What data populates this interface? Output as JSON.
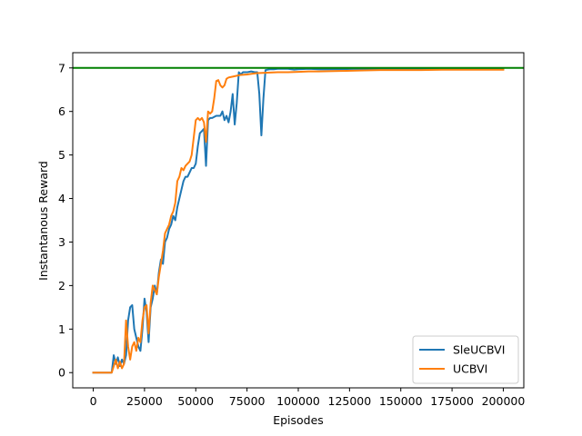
{
  "chart_data": {
    "type": "line",
    "title": "",
    "xlabel": "Episodes",
    "ylabel": "Instantanous Reward",
    "xlim": [
      -10000,
      210000
    ],
    "ylim": [
      -0.35,
      7.35
    ],
    "xticks": [
      0,
      25000,
      50000,
      75000,
      100000,
      125000,
      150000,
      175000,
      200000
    ],
    "yticks": [
      0,
      1,
      2,
      3,
      4,
      5,
      6,
      7
    ],
    "grid": false,
    "legend_placement": "lower-right",
    "reference_line": {
      "y": 7,
      "color": "#008000"
    },
    "series": [
      {
        "name": "SleUCBVI",
        "color": "#1f77b4",
        "points": [
          [
            0,
            0
          ],
          [
            5000,
            0
          ],
          [
            9000,
            0
          ],
          [
            10000,
            0.4
          ],
          [
            11000,
            0.2
          ],
          [
            12000,
            0.35
          ],
          [
            13000,
            0.15
          ],
          [
            14000,
            0.3
          ],
          [
            15000,
            0.2
          ],
          [
            16000,
            0.4
          ],
          [
            17000,
            1.2
          ],
          [
            18000,
            1.5
          ],
          [
            19000,
            1.55
          ],
          [
            20000,
            1.0
          ],
          [
            21000,
            0.8
          ],
          [
            22000,
            0.6
          ],
          [
            23000,
            0.5
          ],
          [
            24000,
            1.0
          ],
          [
            25000,
            1.7
          ],
          [
            26000,
            1.4
          ],
          [
            27000,
            0.7
          ],
          [
            28000,
            1.5
          ],
          [
            29000,
            1.7
          ],
          [
            30000,
            2.0
          ],
          [
            31000,
            1.8
          ],
          [
            32000,
            2.3
          ],
          [
            33000,
            2.6
          ],
          [
            34000,
            2.5
          ],
          [
            35000,
            3.0
          ],
          [
            36000,
            3.1
          ],
          [
            37000,
            3.3
          ],
          [
            38000,
            3.4
          ],
          [
            39000,
            3.6
          ],
          [
            40000,
            3.5
          ],
          [
            41000,
            3.8
          ],
          [
            42000,
            4.0
          ],
          [
            43000,
            4.2
          ],
          [
            44000,
            4.4
          ],
          [
            45000,
            4.5
          ],
          [
            46000,
            4.5
          ],
          [
            47000,
            4.6
          ],
          [
            48000,
            4.7
          ],
          [
            49000,
            4.7
          ],
          [
            50000,
            4.8
          ],
          [
            51000,
            5.2
          ],
          [
            52000,
            5.5
          ],
          [
            53000,
            5.55
          ],
          [
            54000,
            5.6
          ],
          [
            55000,
            4.75
          ],
          [
            56000,
            5.8
          ],
          [
            57000,
            5.85
          ],
          [
            58000,
            5.85
          ],
          [
            60000,
            5.9
          ],
          [
            62000,
            5.9
          ],
          [
            63000,
            6.0
          ],
          [
            64000,
            5.8
          ],
          [
            65000,
            5.9
          ],
          [
            66000,
            5.75
          ],
          [
            67000,
            6.0
          ],
          [
            68000,
            6.4
          ],
          [
            69000,
            5.7
          ],
          [
            70000,
            6.2
          ],
          [
            71000,
            6.9
          ],
          [
            72000,
            6.85
          ],
          [
            73000,
            6.9
          ],
          [
            75000,
            6.9
          ],
          [
            77000,
            6.92
          ],
          [
            79000,
            6.9
          ],
          [
            80000,
            6.9
          ],
          [
            81000,
            6.4
          ],
          [
            82000,
            5.45
          ],
          [
            83000,
            6.3
          ],
          [
            84000,
            6.95
          ],
          [
            86000,
            6.97
          ],
          [
            88000,
            6.97
          ],
          [
            90000,
            6.98
          ],
          [
            92000,
            6.98
          ],
          [
            95000,
            6.98
          ],
          [
            98000,
            6.96
          ],
          [
            100000,
            6.97
          ],
          [
            105000,
            6.98
          ],
          [
            110000,
            6.97
          ],
          [
            120000,
            6.97
          ],
          [
            130000,
            6.98
          ],
          [
            140000,
            6.97
          ],
          [
            150000,
            6.98
          ],
          [
            160000,
            6.97
          ],
          [
            170000,
            6.98
          ],
          [
            180000,
            6.97
          ],
          [
            190000,
            6.98
          ],
          [
            200000,
            6.98
          ]
        ]
      },
      {
        "name": "UCBVI",
        "color": "#ff7f0e",
        "points": [
          [
            0,
            0
          ],
          [
            5000,
            0
          ],
          [
            9000,
            0
          ],
          [
            10000,
            0.15
          ],
          [
            11000,
            0.3
          ],
          [
            12000,
            0.1
          ],
          [
            13000,
            0.25
          ],
          [
            14000,
            0.1
          ],
          [
            15000,
            0.2
          ],
          [
            16000,
            1.2
          ],
          [
            17000,
            0.6
          ],
          [
            18000,
            0.3
          ],
          [
            19000,
            0.6
          ],
          [
            20000,
            0.7
          ],
          [
            21000,
            0.5
          ],
          [
            22000,
            0.8
          ],
          [
            23000,
            0.7
          ],
          [
            24000,
            1.2
          ],
          [
            25000,
            1.5
          ],
          [
            26000,
            1.55
          ],
          [
            27000,
            0.9
          ],
          [
            28000,
            1.6
          ],
          [
            29000,
            2.0
          ],
          [
            30000,
            1.9
          ],
          [
            31000,
            1.8
          ],
          [
            32000,
            2.2
          ],
          [
            33000,
            2.5
          ],
          [
            34000,
            2.8
          ],
          [
            35000,
            3.2
          ],
          [
            36000,
            3.3
          ],
          [
            37000,
            3.4
          ],
          [
            38000,
            3.6
          ],
          [
            39000,
            3.7
          ],
          [
            40000,
            3.9
          ],
          [
            41000,
            4.4
          ],
          [
            42000,
            4.5
          ],
          [
            43000,
            4.7
          ],
          [
            44000,
            4.65
          ],
          [
            45000,
            4.75
          ],
          [
            46000,
            4.8
          ],
          [
            47000,
            4.85
          ],
          [
            48000,
            5.0
          ],
          [
            49000,
            5.4
          ],
          [
            50000,
            5.8
          ],
          [
            51000,
            5.85
          ],
          [
            52000,
            5.8
          ],
          [
            53000,
            5.85
          ],
          [
            54000,
            5.75
          ],
          [
            55000,
            5.3
          ],
          [
            56000,
            6.0
          ],
          [
            57000,
            5.95
          ],
          [
            58000,
            6.0
          ],
          [
            59000,
            6.3
          ],
          [
            60000,
            6.7
          ],
          [
            61000,
            6.72
          ],
          [
            62000,
            6.6
          ],
          [
            63000,
            6.55
          ],
          [
            64000,
            6.6
          ],
          [
            65000,
            6.75
          ],
          [
            66000,
            6.78
          ],
          [
            68000,
            6.8
          ],
          [
            70000,
            6.82
          ],
          [
            72000,
            6.84
          ],
          [
            75000,
            6.85
          ],
          [
            78000,
            6.87
          ],
          [
            80000,
            6.88
          ],
          [
            85000,
            6.89
          ],
          [
            90000,
            6.9
          ],
          [
            95000,
            6.9
          ],
          [
            100000,
            6.91
          ],
          [
            105000,
            6.92
          ],
          [
            110000,
            6.92
          ],
          [
            120000,
            6.93
          ],
          [
            130000,
            6.94
          ],
          [
            140000,
            6.95
          ],
          [
            150000,
            6.95
          ],
          [
            160000,
            6.95
          ],
          [
            170000,
            6.96
          ],
          [
            180000,
            6.96
          ],
          [
            190000,
            6.96
          ],
          [
            200000,
            6.96
          ]
        ]
      }
    ]
  }
}
